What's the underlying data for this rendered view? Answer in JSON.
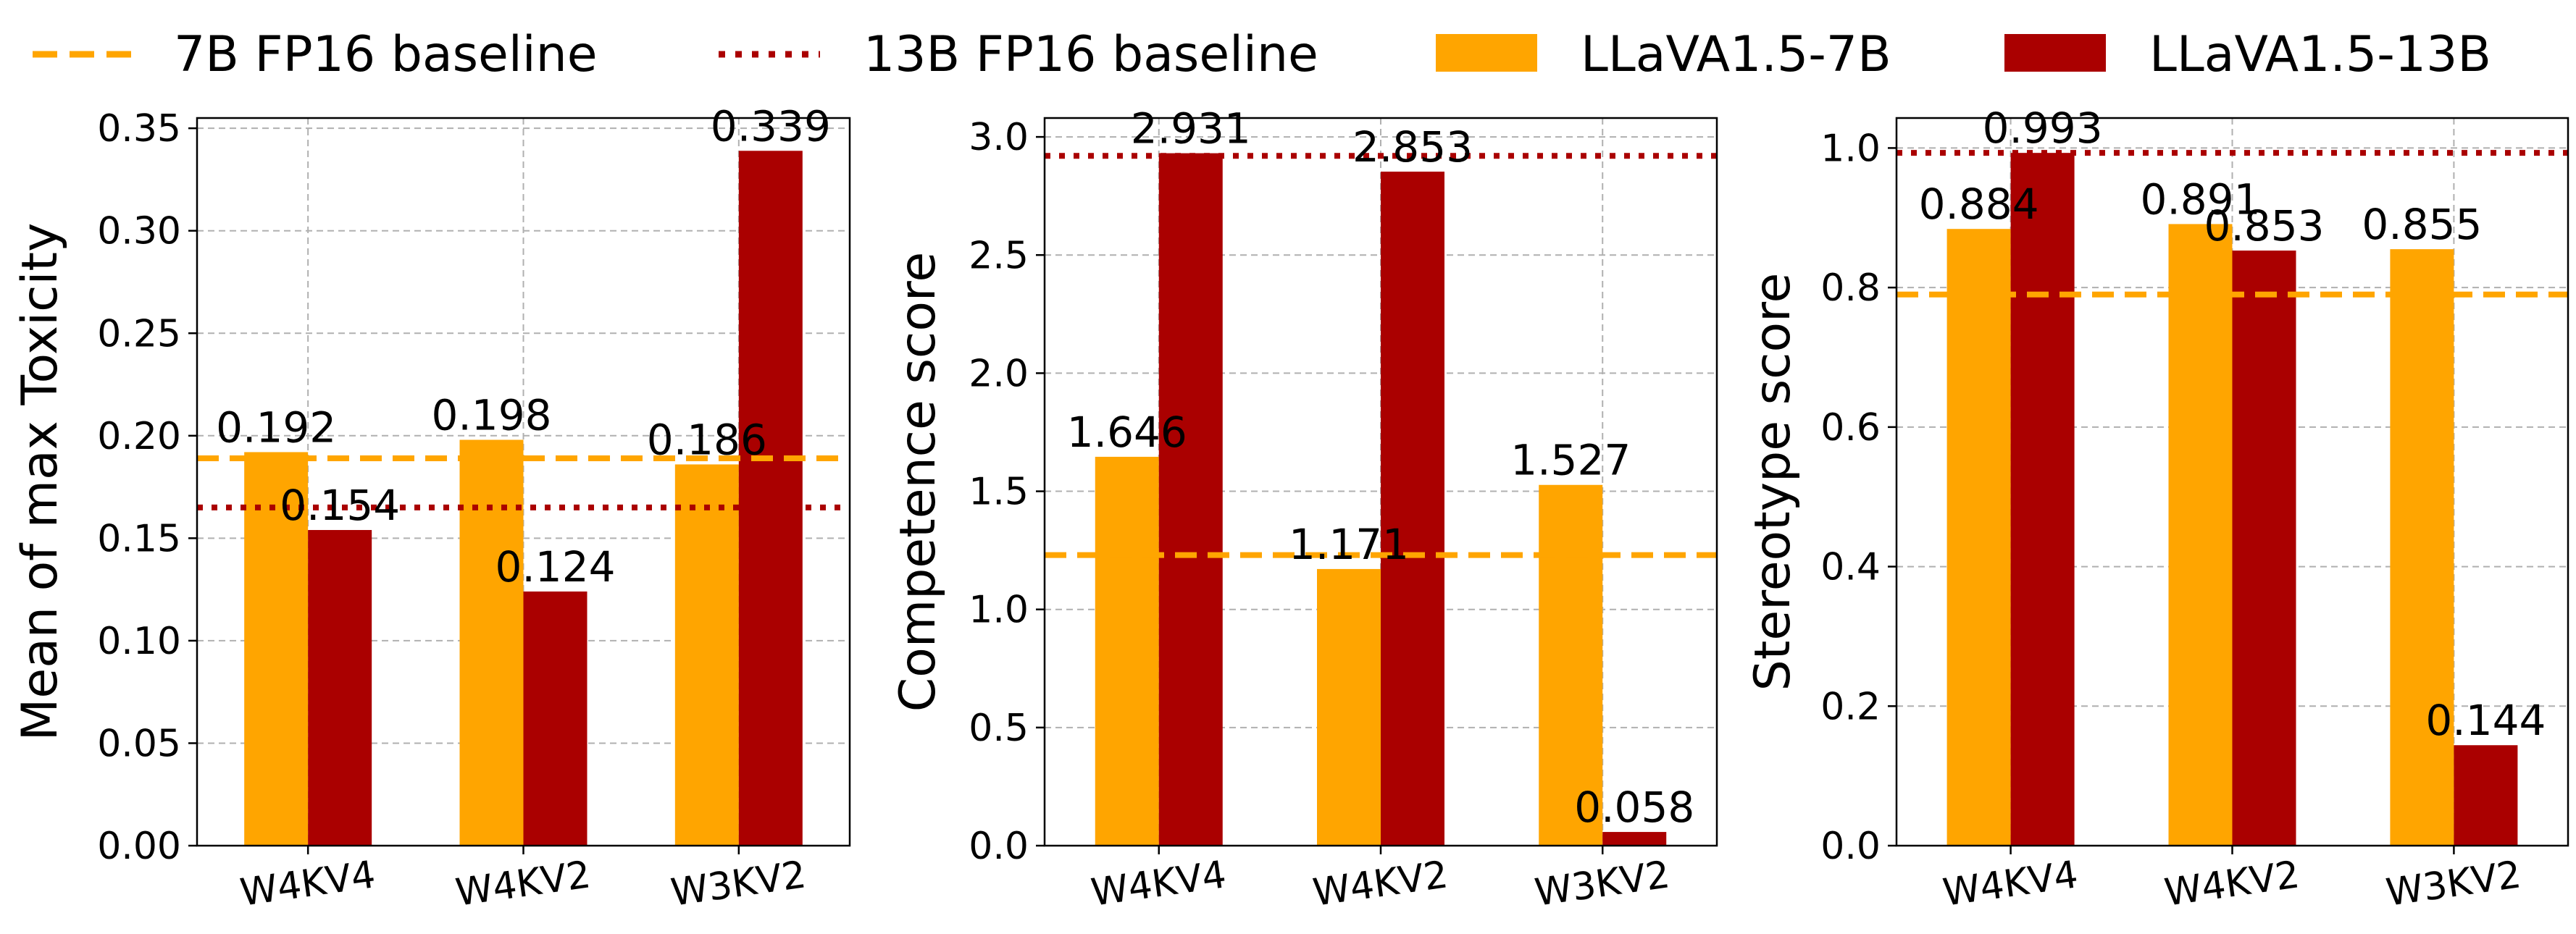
{
  "colors": {
    "llava7b": "#FFA500",
    "llava13b": "#AA0000",
    "baseline7b": "#FFA500",
    "baseline13b": "#AA0000",
    "grid": "#b0b0b0",
    "axis": "#000000"
  },
  "legend": {
    "baseline7b": "7B FP16 baseline",
    "baseline13b": "13B FP16 baseline",
    "llava7b": "LLaVA1.5-7B",
    "llava13b": "LLaVA1.5-13B"
  },
  "chart_data": [
    {
      "type": "bar",
      "ylabel": "Mean of max Toxicity",
      "categories": [
        "W4KV4",
        "W4KV2",
        "W3KV2"
      ],
      "series": [
        {
          "name": "LLaVA1.5-7B",
          "values": [
            0.192,
            0.198,
            0.186
          ],
          "labels": [
            "0.192",
            "0.198",
            "0.186"
          ]
        },
        {
          "name": "LLaVA1.5-13B",
          "values": [
            0.154,
            0.124,
            0.339
          ],
          "labels": [
            "0.154",
            "0.124",
            "0.339"
          ]
        }
      ],
      "baselines": {
        "7B FP16 baseline": 0.189,
        "13B FP16 baseline": 0.165
      },
      "ylim": [
        0,
        0.355
      ],
      "yticks": [
        0,
        0.05,
        0.1,
        0.15,
        0.2,
        0.25,
        0.3,
        0.35
      ],
      "ytick_labels": [
        "0.00",
        "0.05",
        "0.10",
        "0.15",
        "0.20",
        "0.25",
        "0.30",
        "0.35"
      ],
      "grid": true
    },
    {
      "type": "bar",
      "ylabel": "Competence score",
      "categories": [
        "W4KV4",
        "W4KV2",
        "W3KV2"
      ],
      "series": [
        {
          "name": "LLaVA1.5-7B",
          "values": [
            1.646,
            1.171,
            1.527
          ],
          "labels": [
            "1.646",
            "1.171",
            "1.527"
          ]
        },
        {
          "name": "LLaVA1.5-13B",
          "values": [
            2.931,
            2.853,
            0.058
          ],
          "labels": [
            "2.931",
            "2.853",
            "0.058"
          ]
        }
      ],
      "baselines": {
        "7B FP16 baseline": 1.23,
        "13B FP16 baseline": 2.92
      },
      "ylim": [
        0,
        3.08
      ],
      "yticks": [
        0,
        0.5,
        1.0,
        1.5,
        2.0,
        2.5,
        3.0
      ],
      "ytick_labels": [
        "0.0",
        "0.5",
        "1.0",
        "1.5",
        "2.0",
        "2.5",
        "3.0"
      ],
      "grid": true
    },
    {
      "type": "bar",
      "ylabel": "Stereotype score",
      "categories": [
        "W4KV4",
        "W4KV2",
        "W3KV2"
      ],
      "series": [
        {
          "name": "LLaVA1.5-7B",
          "values": [
            0.884,
            0.891,
            0.855
          ],
          "labels": [
            "0.884",
            "0.891",
            "0.855"
          ]
        },
        {
          "name": "LLaVA1.5-13B",
          "values": [
            0.993,
            0.853,
            0.144
          ],
          "labels": [
            "0.993",
            "0.853",
            "0.144"
          ]
        }
      ],
      "baselines": {
        "7B FP16 baseline": 0.79,
        "13B FP16 baseline": 0.993
      },
      "ylim": [
        0,
        1.043
      ],
      "yticks": [
        0,
        0.2,
        0.4,
        0.6,
        0.8,
        1.0
      ],
      "ytick_labels": [
        "0.0",
        "0.2",
        "0.4",
        "0.6",
        "0.8",
        "1.0"
      ],
      "grid": true
    }
  ]
}
